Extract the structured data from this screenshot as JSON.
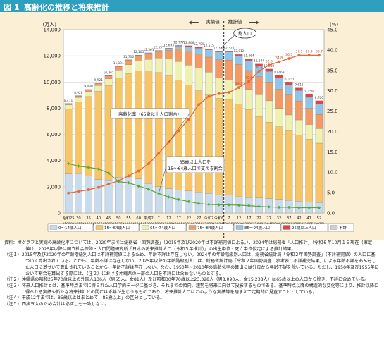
{
  "figure": {
    "number": "図 1",
    "title": "高齢化の推移と将来推計"
  },
  "chart_data": {
    "type": "bar",
    "y_left_unit": "(万人)",
    "y_right_unit": "(%)",
    "ylim_left": [
      0,
      14000
    ],
    "ylim_right": [
      0,
      45
    ],
    "y_left_ticks": [
      "0",
      "2,000",
      "4,000",
      "6,000",
      "8,000",
      "10,000",
      "12,000",
      "14,000"
    ],
    "y_right_ticks": [
      "0.0",
      "5.0",
      "10.0",
      "15.0",
      "20.0",
      "25.0",
      "30.0",
      "35.0",
      "40.0",
      "45.0"
    ],
    "categories_era": [
      "昭和25",
      "30",
      "35",
      "40",
      "45",
      "50",
      "55",
      "60",
      "平成2",
      "7",
      "12",
      "17",
      "22",
      "27",
      "令和2",
      "令和6",
      "7",
      "12",
      "17",
      "22",
      "27",
      "32",
      "37",
      "42",
      "47",
      "52"
    ],
    "categories_year": [
      "(1950)",
      "(1955)",
      "(1960)",
      "(1965)",
      "(1970)",
      "(1975)",
      "(1980)",
      "(1985)",
      "(1990)",
      "(1995)",
      "(2000)",
      "(2005)",
      "(2010)",
      "(2015)",
      "(2020)",
      "(2024)",
      "(2025)",
      "(2030)",
      "(2035)",
      "(2040)",
      "(2045)",
      "(2050)",
      "(2055)",
      "(2060)",
      "(2065)",
      "(2070)"
    ],
    "stack_order": [
      "0〜14歳人口",
      "15〜64歳人口",
      "65〜74歳人口",
      "75〜84歳人口",
      "85〜94歳人口",
      "95歳以上人口",
      "不詳"
    ],
    "series": [
      {
        "name": "0〜14歳人口",
        "color": "#c9dced",
        "values": [
          2979,
          3012,
          2843,
          2553,
          2515,
          2723,
          2751,
          2603,
          2249,
          2001,
          1847,
          1752,
          1680,
          1595,
          1503,
          1383,
          1363,
          1240,
          1169,
          1142,
          1103,
          1041,
          966,
          893,
          828,
          797
        ]
      },
      {
        "name": "15〜64歳人口",
        "color": "#f7c565",
        "values": [
          4966,
          5473,
          6047,
          6744,
          7212,
          7581,
          7883,
          8251,
          8590,
          8726,
          8622,
          8409,
          8103,
          7735,
          7509,
          7373,
          7310,
          7076,
          6722,
          6213,
          5832,
          5540,
          5304,
          5078,
          4809,
          4535
        ]
      },
      {
        "name": "65〜74歳人口",
        "color": "#eef1b0",
        "values": [
          309,
          338,
          382,
          440,
          515,
          616,
          692,
          768,
          893,
          1109,
          1301,
          1407,
          1517,
          1754,
          1742,
          1565,
          1497,
          1428,
          1535,
          1681,
          1631,
          1406,
          1216,
          1136,
          1121,
          1107
        ]
      },
      {
        "name": "75〜84歳人口",
        "color": "#f39a64",
        "values": [
          92,
          119,
          144,
          172,
          220,
          265,
          338,
          390,
          434,
          475,
          645,
          945,
          1041,
          1044,
          1147,
          1378,
          1510,
          1590,
          1452,
          1373,
          1426,
          1478,
          1542,
          1440,
          1231,
          1090
        ]
      },
      {
        "name": "85〜94歳人口",
        "color": "#8ec5e8",
        "values": [
          8,
          8,
          9,
          10,
          17,
          20,
          25,
          38,
          54,
          84,
          145,
          239,
          363,
          451,
          563,
          603,
          622,
          680,
          767,
          827,
          820,
          830,
          769,
          800,
          842,
          809
        ]
      },
      {
        "name": "95歳以上人口",
        "color": "#e93f3f",
        "values": [
          1,
          1,
          1,
          1,
          1,
          1,
          2,
          4,
          6,
          13,
          25,
          40,
          65,
          78,
          76,
          63,
          67,
          88,
          119,
          142,
          180,
          208,
          204,
          206,
          216,
          233
        ]
      },
      {
        "name": "不詳",
        "color": "#d0d0d0",
        "values": [
          0,
          0,
          0,
          0,
          0,
          0,
          0,
          0,
          0,
          0,
          0,
          0,
          0,
          0,
          0,
          0,
          0,
          0,
          0,
          0,
          0,
          0,
          0,
          0,
          0,
          0
        ]
      }
    ],
    "totals_labels": [
      "8,411",
      "8,928",
      "9,430",
      "9,921",
      "10,467",
      "11,194",
      "11,706",
      "12,105",
      "12,361",
      "12,557",
      "12,693",
      "12,777",
      "12,806",
      "12,709",
      "12,615",
      "12,380",
      "12,326",
      "12,012",
      "11,664",
      "11,284",
      "10,880",
      "10,469",
      "10,051",
      "9,615",
      "9,159",
      "8,700"
    ],
    "aging_rate": {
      "name": "高齢化率（65歳以上人口割合）",
      "color": "#e9673a",
      "values": [
        4.9,
        5.3,
        5.7,
        6.3,
        7.1,
        7.9,
        9.1,
        10.3,
        12.1,
        14.6,
        17.4,
        20.2,
        23.0,
        26.6,
        28.6,
        29.3,
        29.6,
        30.8,
        32.3,
        34.8,
        36.3,
        37.1,
        37.9,
        38.7,
        38.7,
        38.7
      ]
    },
    "aging_rate_labels": [
      "29.3",
      "29.6",
      "30.8",
      "32.3",
      "34.8",
      "36.3",
      "37.1",
      "37.9",
      "38.7"
    ],
    "support_ratio": {
      "name": "65歳以上人口を15〜64歳人口で支える割合",
      "color": "#5aa832",
      "values": [
        12.1,
        11.5,
        11.2,
        10.8,
        9.8,
        7.7,
        7.4,
        6.6,
        5.8,
        4.8,
        3.9,
        3.3,
        2.8,
        2.3,
        2.1,
        2.0,
        2.0,
        1.9,
        1.8,
        1.6,
        1.5,
        1.4,
        1.4,
        1.3,
        1.3,
        1.3
      ]
    },
    "annotations": {
      "actual": "実績値",
      "projection": "推計値",
      "current": "総人口"
    }
  },
  "notes": [
    "資料：棒グラフと実線の高齢化率については、2020年までは総務省「国勢調査」（2015年及び2020年は不詳補完値による。）、2024年は総務省「人口推計」（令和６年10月１日現在（確定値））、2025年以降は国立社会保障・人口問題研究所「日本の将来推計人口（令和５年推計）」の出生中位・死亡中位仮定による推計結果。",
    "（注１）2015年及び2020年の年齢階級別人口は不詳補完値によるため、年齢不詳は存在しない。2024年の年齢階級別人口は、総務省統計局「令和２年国勢調査」（不詳補完値）の人口に基づいて算出されていることから、年齢不詳は存在しない。2025年以降の年齢階級別人口は、総務省統計局「令和２年国勢調査　参考表：不詳補完結果」による年齢不詳をあん分した人口に基づいて算出されていることから、年齢不詳は存在しない。なお、1950年～2010年の高齢化率の算出には分母から年齢不詳を除いている。ただし、1950年及び1955年において割合を算出する際には、（注２）における沖縄県の一部の人口を不詳には含めないものとする。",
    "（注２）沖縄県の昭和25年70歳以上の外国人136人（男55人、女81人）及び昭和30年70歳以上23,328人（男8,090人、女15,238人）は65歳以上の人口から除き、不詳に含めている。",
    "（注３）将来人口推計とは、基準時点までに得られた人口学的データに基づき、それまでの傾向、趨勢を将来に向けて投影するものである。基準時点以降の構造的な変化等により、推計以降に得られる実績や新たな将来推計との間には乖離が生じうるものであり、将来推計人口はこのような実績等を踏まえて定期的に見直すこととしている。",
    "（注４）平成12年までは、85歳以上はまとめて「85歳以上」の区分としている。",
    "（注５）四捨五入のため合計は必ずしも一致しない。"
  ]
}
